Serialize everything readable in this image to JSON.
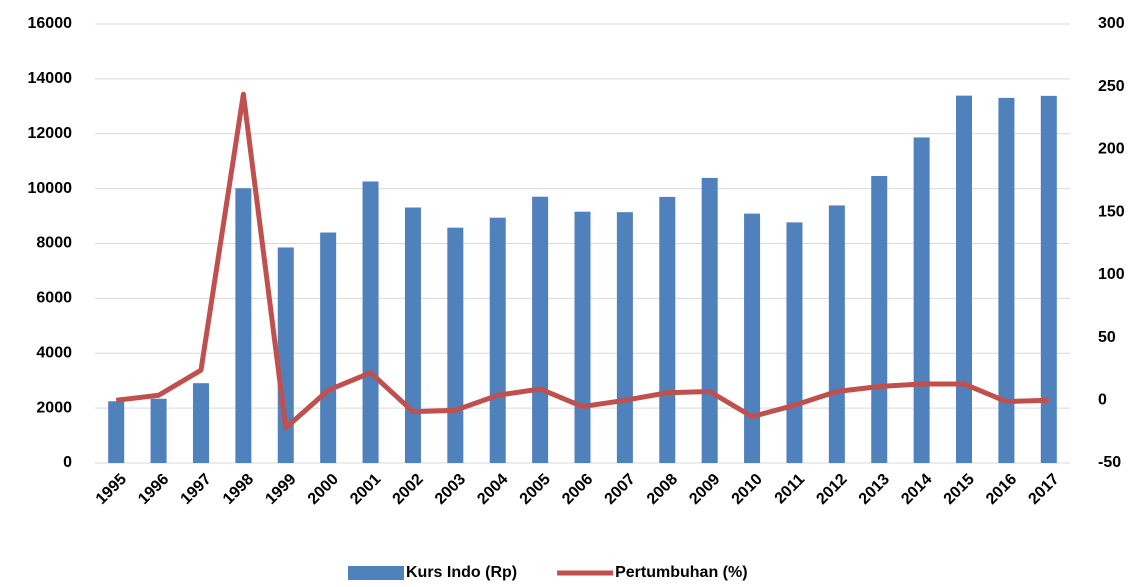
{
  "chart_data": {
    "type": "bar-line",
    "categories": [
      "1995",
      "1996",
      "1997",
      "1998",
      "1999",
      "2000",
      "2001",
      "2002",
      "2003",
      "2004",
      "2005",
      "2006",
      "2007",
      "2008",
      "2009",
      "2010",
      "2011",
      "2012",
      "2013",
      "2014",
      "2015",
      "2016",
      "2017"
    ],
    "series": [
      {
        "name": "Kurs Indo (Rp)",
        "type": "bar",
        "color": "#4f81bd",
        "values": [
          2249,
          2342,
          2909,
          10014,
          7855,
          8400,
          10261,
          9311,
          8577,
          8940,
          9705,
          9159,
          9141,
          9699,
          10390,
          9090,
          8770,
          9387,
          10461,
          11865,
          13389,
          13308,
          13381
        ]
      },
      {
        "name": "Pertumbuhan (%)",
        "type": "line",
        "axis": "y2",
        "color": "#c0504d",
        "values": [
          0,
          4,
          24,
          244,
          -22,
          8,
          22,
          -9,
          -8,
          4,
          9,
          -5,
          0,
          6,
          7,
          -13,
          -4,
          7,
          11,
          13,
          13,
          -1,
          0
        ]
      }
    ],
    "ylim": [
      0,
      16000
    ],
    "yticks": [
      0,
      2000,
      4000,
      6000,
      8000,
      10000,
      12000,
      14000,
      16000
    ],
    "y2lim": [
      -50,
      300
    ],
    "y2ticks": [
      -50,
      0,
      50,
      100,
      150,
      200,
      250,
      300
    ],
    "grid": true,
    "legend": "bottom"
  }
}
